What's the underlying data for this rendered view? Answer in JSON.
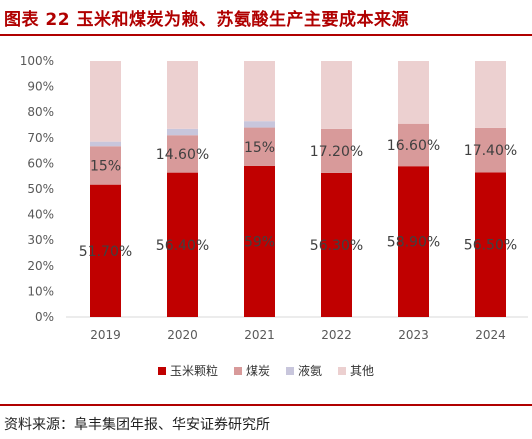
{
  "title": "图表 22  玉米和煤炭为赖、苏氨酸生产主要成本来源",
  "source": "资料来源：阜丰集团年报、华安证券研究所",
  "chart_data": {
    "type": "bar",
    "stacked": true,
    "categories": [
      "2019",
      "2020",
      "2021",
      "2022",
      "2023",
      "2024"
    ],
    "series": [
      {
        "name": "玉米颗粒",
        "color": "#c00000",
        "values": [
          51.7,
          56.4,
          59.0,
          56.3,
          58.9,
          56.5
        ],
        "labels": [
          "51.70%",
          "56.40%",
          "59%",
          "56.30%",
          "58.90%",
          "56.50%"
        ]
      },
      {
        "name": "煤炭",
        "color": "#d89a9a",
        "values": [
          15.0,
          14.6,
          15.0,
          17.2,
          16.6,
          17.4
        ],
        "labels": [
          "15%",
          "14.60%",
          "15%",
          "17.20%",
          "16.60%",
          "17.40%"
        ]
      },
      {
        "name": "液氨",
        "color": "#c8c6dc",
        "values": [
          1.8,
          2.5,
          2.5,
          0,
          0,
          0
        ]
      },
      {
        "name": "其他",
        "color": "#ecd0d0",
        "values": [
          31.5,
          26.5,
          23.5,
          26.5,
          24.5,
          26.1
        ]
      }
    ],
    "y_ticks": [
      "0%",
      "10%",
      "20%",
      "30%",
      "40%",
      "50%",
      "60%",
      "70%",
      "80%",
      "90%",
      "100%"
    ],
    "ylim": [
      0,
      100
    ],
    "legend": "bottom",
    "grid": false
  }
}
